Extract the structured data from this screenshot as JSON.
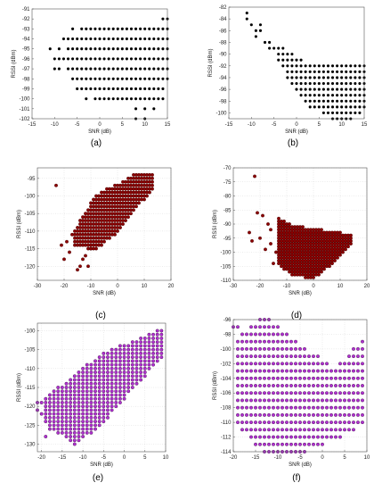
{
  "colors": {
    "black": "#000000",
    "red": "#8b0000",
    "magenta": "#b030d0",
    "frame": "#555555",
    "edge": "#2a0030"
  },
  "chart_data": [
    {
      "type": "scatter",
      "caption": "(a)",
      "xlabel": "SNR (dB)",
      "ylabel": "RSSI (dBm)",
      "xlim": [
        -15,
        15
      ],
      "ylim": [
        -102,
        -91
      ],
      "xticks": [
        -15,
        -10,
        -5,
        0,
        5,
        10,
        15
      ],
      "yticks": [
        -102,
        -101,
        -100,
        -99,
        -98,
        -97,
        -96,
        -95,
        -94,
        -93,
        -92,
        -91
      ],
      "grid": false,
      "marker_color": "black",
      "bands": [
        {
          "y": -92,
          "x": [
            14,
            15
          ]
        },
        {
          "y": -93,
          "x": [
            -6,
            -4,
            -3,
            -2,
            -1,
            0,
            1,
            2,
            3,
            4,
            5,
            6,
            7,
            8,
            9,
            10,
            11,
            12,
            13,
            14,
            15
          ]
        },
        {
          "y": -94,
          "x": [
            -8,
            -7,
            -6,
            -5,
            -4,
            -3,
            -2,
            -1,
            0,
            1,
            2,
            3,
            4,
            5,
            6,
            7,
            8,
            9,
            10,
            11,
            12,
            13,
            14,
            15
          ]
        },
        {
          "y": -95,
          "x": [
            -11,
            -9,
            -7,
            -6,
            -5,
            -4,
            -3,
            -2,
            -1,
            0,
            1,
            2,
            3,
            4,
            5,
            6,
            7,
            8,
            9,
            10,
            11,
            12,
            13,
            14,
            15
          ]
        },
        {
          "y": -96,
          "x": [
            -10,
            -9,
            -8,
            -7,
            -6,
            -5,
            -4,
            -3,
            -2,
            -1,
            0,
            1,
            2,
            3,
            4,
            5,
            6,
            7,
            8,
            9,
            10,
            11,
            12,
            13,
            14,
            15
          ]
        },
        {
          "y": -97,
          "x": [
            -10,
            -9,
            -7,
            -6,
            -5,
            -4,
            -3,
            -2,
            -1,
            0,
            1,
            2,
            3,
            4,
            5,
            6,
            7,
            8,
            9,
            10,
            11,
            12,
            13,
            14,
            15
          ]
        },
        {
          "y": -98,
          "x": [
            -6,
            -5,
            -4,
            -3,
            -2,
            -1,
            0,
            1,
            2,
            3,
            4,
            5,
            6,
            7,
            8,
            9,
            10,
            11,
            12,
            13,
            14,
            15
          ]
        },
        {
          "y": -99,
          "x": [
            -5,
            -4,
            -3,
            -2,
            -1,
            0,
            1,
            2,
            3,
            4,
            5,
            6,
            7,
            8,
            9,
            10,
            11,
            12,
            13,
            14
          ]
        },
        {
          "y": -100,
          "x": [
            -3,
            -1,
            0,
            1,
            2,
            3,
            4,
            5,
            6,
            7,
            8,
            9,
            10,
            11,
            12,
            13,
            14
          ]
        },
        {
          "y": -101,
          "x": [
            8,
            10,
            12
          ]
        },
        {
          "y": -102,
          "x": [
            8,
            10
          ]
        }
      ]
    },
    {
      "type": "scatter",
      "caption": "(b)",
      "xlabel": "SNR (dB)",
      "ylabel": "RSSI (dBm)",
      "xlim": [
        -15,
        15
      ],
      "ylim": [
        -101,
        -82
      ],
      "xticks": [
        -15,
        -10,
        -5,
        0,
        5,
        10,
        15
      ],
      "yticks": [
        -100,
        -98,
        -96,
        -94,
        -92,
        -90,
        -88,
        -86,
        -84,
        -82
      ],
      "grid": false,
      "marker_color": "black",
      "bands": [
        {
          "y": -83,
          "x": [
            -11
          ]
        },
        {
          "y": -84,
          "x": [
            -11
          ]
        },
        {
          "y": -85,
          "x": [
            -10,
            -8
          ]
        },
        {
          "y": -86,
          "x": [
            -9,
            -8
          ]
        },
        {
          "y": -87,
          "x": [
            -9
          ]
        },
        {
          "y": -88,
          "x": [
            -7,
            -6
          ]
        },
        {
          "y": -89,
          "x": [
            -6,
            -5,
            -4,
            -3
          ]
        },
        {
          "y": -90,
          "x": [
            -4,
            -3,
            -2,
            -1
          ]
        },
        {
          "y": -91,
          "x": [
            -4,
            -3,
            -2,
            -1,
            0,
            1
          ]
        },
        {
          "y": -92,
          "x": [
            -3,
            -2,
            -1,
            0,
            1,
            2,
            3,
            4,
            5,
            6,
            7,
            8,
            9,
            10,
            11,
            12,
            13,
            14,
            15
          ]
        },
        {
          "y": -93,
          "x": [
            -2,
            -1,
            0,
            1,
            2,
            3,
            4,
            5,
            6,
            7,
            8,
            9,
            10,
            11,
            12,
            13,
            14,
            15
          ]
        },
        {
          "y": -94,
          "x": [
            -2,
            -1,
            0,
            1,
            2,
            3,
            4,
            5,
            6,
            7,
            8,
            9,
            10,
            11,
            12,
            13,
            14,
            15
          ]
        },
        {
          "y": -95,
          "x": [
            -1,
            0,
            1,
            2,
            3,
            4,
            5,
            6,
            7,
            8,
            9,
            10,
            11,
            12,
            13,
            14,
            15
          ]
        },
        {
          "y": -96,
          "x": [
            0,
            1,
            2,
            3,
            4,
            5,
            6,
            7,
            8,
            9,
            10,
            11,
            12,
            13,
            14,
            15
          ]
        },
        {
          "y": -97,
          "x": [
            1,
            2,
            3,
            4,
            5,
            6,
            7,
            8,
            9,
            10,
            11,
            12,
            13,
            14,
            15
          ]
        },
        {
          "y": -98,
          "x": [
            2,
            3,
            4,
            5,
            6,
            7,
            8,
            9,
            10,
            11,
            12,
            13,
            14,
            15
          ]
        },
        {
          "y": -99,
          "x": [
            3,
            4,
            5,
            6,
            7,
            8,
            9,
            10,
            11,
            12,
            13,
            14,
            15
          ]
        },
        {
          "y": -100,
          "x": [
            6,
            7,
            8,
            9,
            10,
            11,
            12,
            13,
            14
          ]
        },
        {
          "y": -101,
          "x": [
            8,
            9,
            10,
            11,
            12
          ]
        }
      ]
    },
    {
      "type": "scatter",
      "caption": "(c)",
      "xlabel": "SNR (dB)",
      "ylabel": "RSSI (dBm)",
      "xlim": [
        -30,
        20
      ],
      "ylim": [
        -124,
        -92
      ],
      "xticks": [
        -30,
        -20,
        -10,
        0,
        10,
        20
      ],
      "yticks": [
        -120,
        -115,
        -110,
        -105,
        -100,
        -95
      ],
      "grid": true,
      "marker_color": "red",
      "cloud": {
        "xmin": -16,
        "xmax": 13,
        "upper": [
          [
            -16,
            -110
          ],
          [
            -8,
            -100
          ],
          [
            0,
            -97
          ],
          [
            6,
            -94.5
          ],
          [
            13,
            -94
          ]
        ],
        "lower": [
          [
            -16,
            -114
          ],
          [
            -8,
            -115
          ],
          [
            0,
            -110
          ],
          [
            6,
            -104
          ],
          [
            13,
            -98
          ]
        ],
        "step_x": 1,
        "step_y": 1
      },
      "extra_points": [
        [
          -23,
          -97
        ],
        [
          -20,
          -118
        ],
        [
          -18,
          -116
        ],
        [
          -15,
          -121
        ],
        [
          -14,
          -120
        ],
        [
          -12,
          -117
        ],
        [
          -10,
          -115
        ],
        [
          -19,
          -113
        ],
        [
          -17,
          -111
        ],
        [
          -21,
          -114
        ],
        [
          -13,
          -118
        ],
        [
          -11,
          -120
        ]
      ]
    },
    {
      "type": "scatter",
      "caption": "(d)",
      "xlabel": "SNR (dB)",
      "ylabel": "RSSI (dBm)",
      "xlim": [
        -30,
        20
      ],
      "ylim": [
        -110,
        -70
      ],
      "xticks": [
        -30,
        -20,
        -10,
        0,
        10,
        20
      ],
      "yticks": [
        -110,
        -105,
        -100,
        -95,
        -90,
        -85,
        -80,
        -75,
        -70
      ],
      "grid": true,
      "marker_color": "red",
      "cloud": {
        "xmin": -13,
        "xmax": 14,
        "upper": [
          [
            -13,
            -88
          ],
          [
            -8,
            -91
          ],
          [
            0,
            -92
          ],
          [
            7,
            -93
          ],
          [
            14,
            -94
          ]
        ],
        "lower": [
          [
            -13,
            -104
          ],
          [
            -8,
            -108
          ],
          [
            0,
            -109
          ],
          [
            7,
            -104
          ],
          [
            14,
            -97
          ]
        ],
        "step_x": 1,
        "step_y": 1
      },
      "extra_points": [
        [
          -22,
          -73
        ],
        [
          -21,
          -86
        ],
        [
          -19,
          -87
        ],
        [
          -17,
          -90
        ],
        [
          -20,
          -95
        ],
        [
          -18,
          -99
        ],
        [
          -16,
          -97
        ],
        [
          -24,
          -93
        ],
        [
          -15,
          -104
        ],
        [
          -14,
          -100
        ],
        [
          -23,
          -96
        ],
        [
          -16,
          -92
        ]
      ]
    },
    {
      "type": "scatter",
      "caption": "(e)",
      "xlabel": "SNR (dB)",
      "ylabel": "RSSI (dBm)",
      "xlim": [
        -21,
        10
      ],
      "ylim": [
        -132,
        -98
      ],
      "xticks": [
        -20,
        -15,
        -10,
        -5,
        0,
        5,
        10
      ],
      "yticks": [
        -130,
        -125,
        -120,
        -115,
        -110,
        -105,
        -100
      ],
      "grid": true,
      "marker_color": "magenta",
      "cloud": {
        "xmin": -19,
        "xmax": 9,
        "upper": [
          [
            -19,
            -118
          ],
          [
            -12,
            -112
          ],
          [
            -5,
            -106
          ],
          [
            3,
            -103
          ],
          [
            9,
            -100
          ]
        ],
        "lower": [
          [
            -19,
            -124
          ],
          [
            -12,
            -130
          ],
          [
            -5,
            -124
          ],
          [
            3,
            -114
          ],
          [
            9,
            -107
          ]
        ],
        "step_x": 1,
        "step_y": 1
      },
      "extra_points": [
        [
          -21,
          -119
        ],
        [
          -20,
          -119
        ],
        [
          -20,
          -122
        ],
        [
          -21,
          -121
        ],
        [
          -19,
          -128
        ],
        [
          -18,
          -126
        ]
      ]
    },
    {
      "type": "scatter",
      "caption": "(f)",
      "xlabel": "SNR (dB)",
      "ylabel": "RSSI (dBm)",
      "xlim": [
        -20,
        10
      ],
      "ylim": [
        -114,
        -96
      ],
      "xticks": [
        -20,
        -15,
        -10,
        -5,
        0,
        5,
        10
      ],
      "yticks": [
        -114,
        -112,
        -110,
        -108,
        -106,
        -104,
        -102,
        -100,
        -98,
        -96
      ],
      "grid": true,
      "marker_color": "magenta",
      "cloud": {
        "xmin": -19,
        "xmax": 9,
        "upper": [
          [
            -19,
            -99
          ],
          [
            -13,
            -96
          ],
          [
            -5,
            -100
          ],
          [
            3,
            -103
          ],
          [
            9,
            -99
          ]
        ],
        "lower": [
          [
            -19,
            -110
          ],
          [
            -13,
            -114
          ],
          [
            -5,
            -114
          ],
          [
            3,
            -112
          ],
          [
            9,
            -110
          ]
        ],
        "step_x": 1,
        "step_y": 1
      },
      "extra_points": [
        [
          -20,
          -97
        ],
        [
          -19,
          -97
        ]
      ]
    }
  ]
}
